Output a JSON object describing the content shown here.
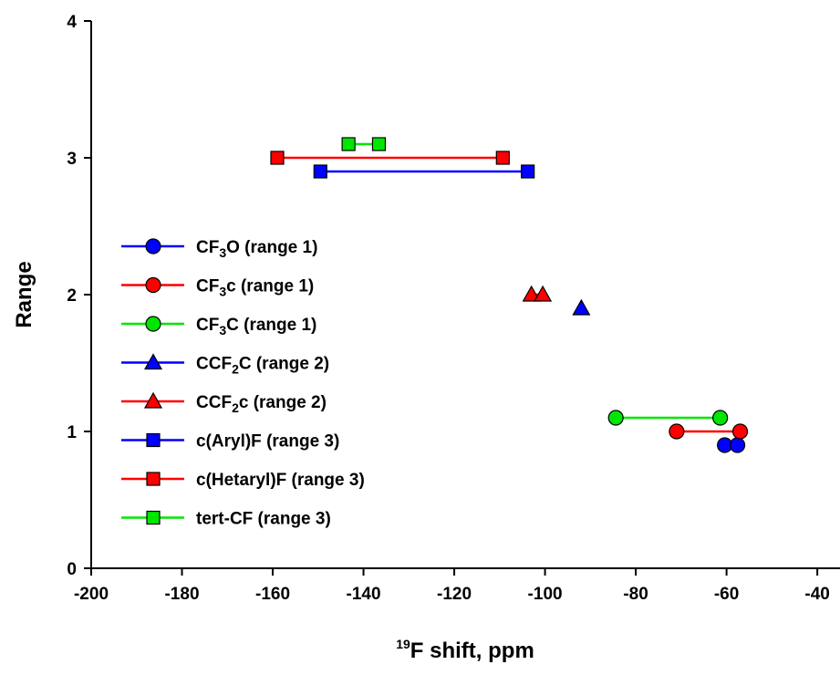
{
  "chart_data": {
    "type": "scatter",
    "xlabel": {
      "sup": "19",
      "main": "F shift, ppm"
    },
    "ylabel": "Range",
    "xlim": [
      -200,
      -35
    ],
    "ylim": [
      0,
      4
    ],
    "xticks": [
      "-200",
      "-180",
      "-160",
      "-140",
      "-120",
      "-100",
      "-80",
      "-60",
      "-40"
    ],
    "xtick_values": [
      -200,
      -180,
      -160,
      -140,
      -120,
      -100,
      -80,
      -60,
      -40
    ],
    "yticks": [
      "0",
      "1",
      "2",
      "3",
      "4"
    ],
    "ytick_values": [
      0,
      1,
      2,
      3,
      4
    ],
    "grid": false,
    "legend_position": "left-center",
    "series": [
      {
        "name": "CF3O (range 1)",
        "label": {
          "a": "CF",
          "sub": "3",
          "b": "O (range 1)"
        },
        "marker": "circle",
        "color": "#0000ff",
        "line_color": "#0000ff",
        "connected": true,
        "points": [
          [
            -60.4,
            0.9
          ],
          [
            -57.6,
            0.9
          ]
        ]
      },
      {
        "name": "CF3c (range 1)",
        "label": {
          "a": "CF",
          "sub": "3",
          "b": "c (range 1)"
        },
        "marker": "circle",
        "color": "#ff0000",
        "line_color": "#ff0000",
        "connected": true,
        "points": [
          [
            -71.0,
            1.0
          ],
          [
            -57.0,
            1.0
          ]
        ]
      },
      {
        "name": "CF3C (range 1)",
        "label": {
          "a": "CF",
          "sub": "3",
          "b": "C (range 1)"
        },
        "marker": "circle",
        "color": "#00e600",
        "line_color": "#00e600",
        "connected": true,
        "points": [
          [
            -84.4,
            1.1
          ],
          [
            -61.4,
            1.1
          ]
        ]
      },
      {
        "name": "CCF2C (range 2)",
        "label": {
          "a": "CCF",
          "sub": "2",
          "b": "C (range 2)"
        },
        "marker": "triangle",
        "color": "#0000ff",
        "line_color": "#0000ff",
        "connected": true,
        "points": [
          [
            -92.0,
            1.9
          ]
        ]
      },
      {
        "name": "CCF2c (range 2)",
        "label": {
          "a": "CCF",
          "sub": "2",
          "b": "c (range 2)"
        },
        "marker": "triangle",
        "color": "#ff0000",
        "line_color": "#ff0000",
        "connected": true,
        "points": [
          [
            -103.0,
            2.0
          ],
          [
            -100.5,
            2.0
          ]
        ]
      },
      {
        "name": "c(Aryl)F (range 3)",
        "label": {
          "a": "c(Aryl)F (range 3)",
          "sub": "",
          "b": ""
        },
        "marker": "square",
        "color": "#0000ff",
        "line_color": "#0000ff",
        "connected": true,
        "points": [
          [
            -149.5,
            2.9
          ],
          [
            -103.8,
            2.9
          ]
        ]
      },
      {
        "name": "c(Hetaryl)F (range 3)",
        "label": {
          "a": "c(Hetaryl)F (range 3)",
          "sub": "",
          "b": ""
        },
        "marker": "square",
        "color": "#ff0000",
        "line_color": "#ff0000",
        "connected": true,
        "points": [
          [
            -159.0,
            3.0
          ],
          [
            -109.3,
            3.0
          ]
        ]
      },
      {
        "name": "tert-CF (range 3)",
        "label": {
          "a": "tert-CF (range 3)",
          "sub": "",
          "b": ""
        },
        "marker": "square",
        "color": "#00e600",
        "line_color": "#00e600",
        "connected": true,
        "points": [
          [
            -143.3,
            3.1
          ],
          [
            -136.6,
            3.1
          ]
        ]
      }
    ]
  }
}
